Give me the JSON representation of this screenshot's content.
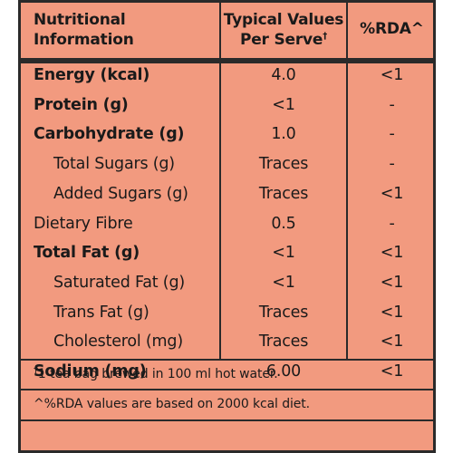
{
  "header": {
    "col1_line1": "Nutritional",
    "col1_line2": "Information",
    "col2_line1": "Typical Values",
    "col2_line2": "Per Serve",
    "col2_mark": "†",
    "col3": "%RDA^"
  },
  "rows": [
    {
      "name": "Energy (kcal)",
      "value": "4.0",
      "rda": "<1",
      "bold": true,
      "indent": false
    },
    {
      "name": "Protein (g)",
      "value": "<1",
      "rda": "-",
      "bold": true,
      "indent": false
    },
    {
      "name": "Carbohydrate (g)",
      "value": "1.0",
      "rda": "-",
      "bold": true,
      "indent": false
    },
    {
      "name": "Total Sugars (g)",
      "value": "Traces",
      "rda": "-",
      "bold": false,
      "indent": true
    },
    {
      "name": "Added Sugars (g)",
      "value": "Traces",
      "rda": "<1",
      "bold": false,
      "indent": true
    },
    {
      "name": "Dietary Fibre",
      "value": "0.5",
      "rda": "-",
      "bold": false,
      "indent": false
    },
    {
      "name": "Total Fat (g)",
      "value": "<1",
      "rda": "<1",
      "bold": true,
      "indent": false
    },
    {
      "name": "Saturated Fat (g)",
      "value": "<1",
      "rda": "<1",
      "bold": false,
      "indent": true
    },
    {
      "name": "Trans Fat (g)",
      "value": "Traces",
      "rda": "<1",
      "bold": false,
      "indent": true
    },
    {
      "name": "Cholesterol (mg)",
      "value": "Traces",
      "rda": "<1",
      "bold": false,
      "indent": true
    },
    {
      "name": "Sodium (mg)",
      "value": "6.00",
      "rda": "<1",
      "bold": true,
      "indent": false
    }
  ],
  "footnotes": {
    "serve_mark": "†",
    "serve": "1 tea bag brewed in 100 ml hot water.",
    "rda": "^%RDA values are based on 2000 kcal diet."
  },
  "colors": {
    "background": "#f29a7f",
    "lines": "#2a2a2a",
    "text": "#1a1a1a"
  }
}
